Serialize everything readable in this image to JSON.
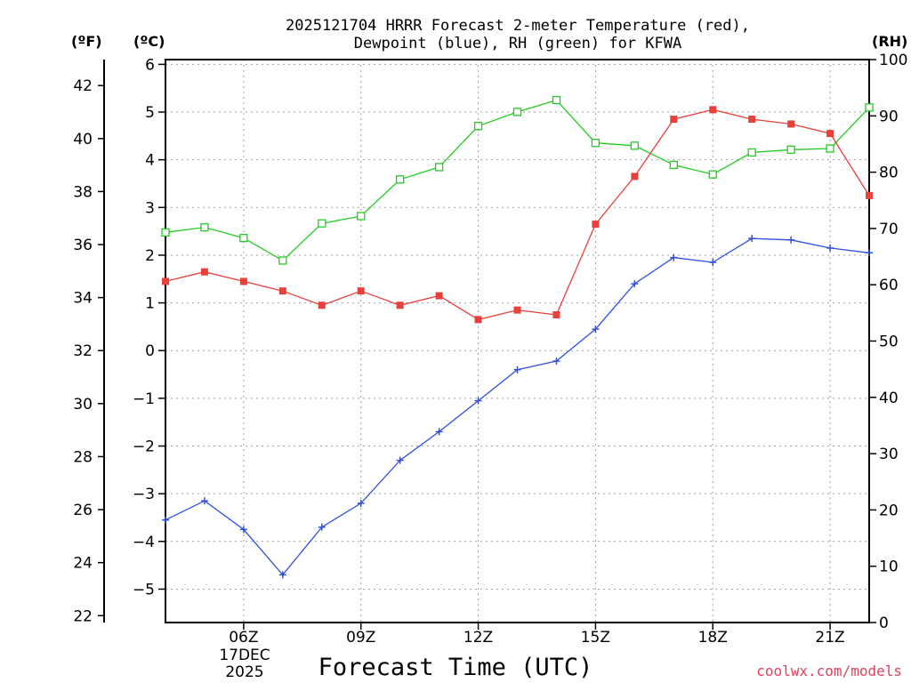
{
  "chart_data": {
    "type": "line",
    "title_line1": "2025121704 HRRR Forecast 2-meter Temperature (red),",
    "title_line2": "Dewpoint (blue), RH (green) for KFWA",
    "xlabel": "Forecast Time (UTC)",
    "unit_left_outer": "(ºF)",
    "unit_left_inner": "(ºC)",
    "unit_right": "(RH)",
    "date_label_line1": "17DEC",
    "date_label_line2": "2025",
    "credit": "coolwx.com/models",
    "x_hours": [
      4,
      5,
      6,
      7,
      8,
      9,
      10,
      11,
      12,
      13,
      14,
      15,
      16,
      17,
      18,
      19,
      20,
      21,
      22
    ],
    "x_range": [
      4,
      22
    ],
    "x_ticks": [
      {
        "hour": 6,
        "label": "06Z"
      },
      {
        "hour": 9,
        "label": "09Z"
      },
      {
        "hour": 12,
        "label": "12Z"
      },
      {
        "hour": 15,
        "label": "15Z"
      },
      {
        "hour": 18,
        "label": "18Z"
      },
      {
        "hour": 21,
        "label": "21Z"
      }
    ],
    "celsius_range": [
      -5.7,
      6.1
    ],
    "celsius_ticks": [
      "6",
      "5",
      "4",
      "3",
      "2",
      "1",
      "0",
      "−1",
      "−2",
      "−3",
      "−4",
      "−5"
    ],
    "celsius_tick_values": [
      6,
      5,
      4,
      3,
      2,
      1,
      0,
      -1,
      -2,
      -3,
      -4,
      -5
    ],
    "fahrenheit_ticks": [
      "42",
      "40",
      "38",
      "36",
      "34",
      "32",
      "30",
      "28",
      "26",
      "24",
      "22"
    ],
    "fahrenheit_tick_values": [
      42,
      40,
      38,
      36,
      34,
      32,
      30,
      28,
      26,
      24,
      22
    ],
    "rh_range": [
      0,
      100
    ],
    "rh_ticks": [
      "100",
      "90",
      "80",
      "70",
      "60",
      "50",
      "40",
      "30",
      "20",
      "10",
      "0"
    ],
    "rh_tick_values": [
      100,
      90,
      80,
      70,
      60,
      50,
      40,
      30,
      20,
      10,
      0
    ],
    "colors": {
      "temperature": "#e8403a",
      "dewpoint": "#3050e0",
      "rh": "#22cc22",
      "grid": "#a0a0a0",
      "credit": "#e0405a"
    },
    "series": [
      {
        "name": "Temperature",
        "unit": "C",
        "values": [
          1.45,
          1.65,
          1.45,
          1.25,
          0.95,
          1.25,
          0.95,
          1.15,
          0.65,
          0.85,
          0.75,
          2.65,
          3.65,
          4.85,
          5.05,
          4.85,
          4.75,
          4.55,
          3.25
        ]
      },
      {
        "name": "Dewpoint",
        "unit": "C",
        "values": [
          -3.55,
          -3.15,
          -3.75,
          -4.7,
          -3.7,
          -3.2,
          -2.3,
          -1.7,
          -1.05,
          -0.4,
          -0.22,
          0.45,
          1.4,
          1.95,
          1.85,
          2.35,
          2.32,
          2.15,
          2.05
        ]
      },
      {
        "name": "RH",
        "unit": "%",
        "values": [
          69.3,
          70.2,
          68.3,
          64.3,
          70.9,
          72.2,
          78.7,
          80.9,
          88.2,
          90.7,
          92.8,
          85.2,
          84.7,
          81.3,
          79.6,
          83.5,
          84.0,
          84.2,
          91.5
        ]
      }
    ]
  }
}
